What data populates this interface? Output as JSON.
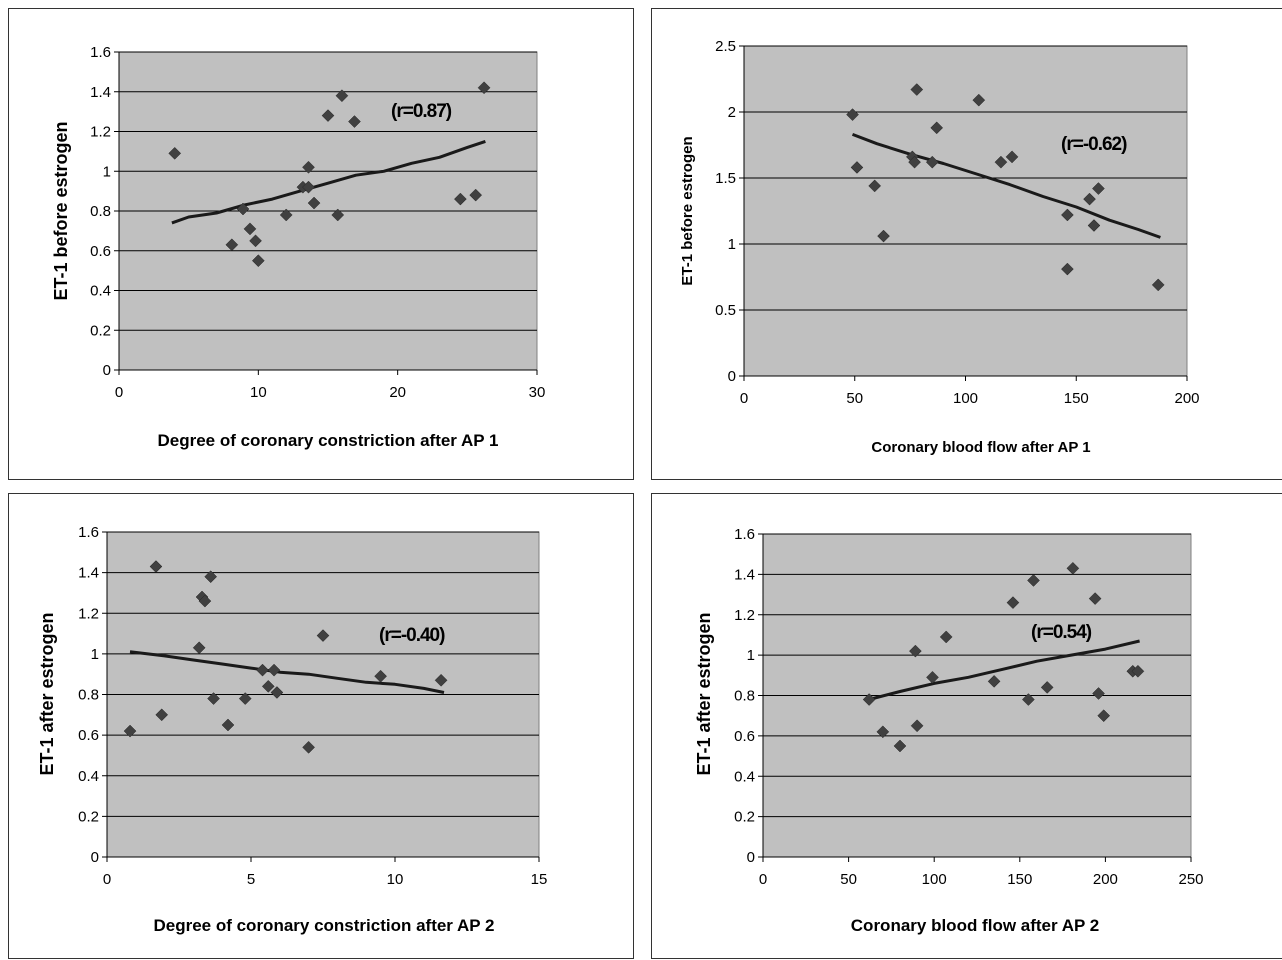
{
  "colors": {
    "plot_bg": "#c0c0c0",
    "marker": "#404040",
    "line": "#1a1a1a",
    "grid": "#000000"
  },
  "chart_data": [
    {
      "type": "scatter",
      "xlabel": "Degree of coronary constriction after AP 1",
      "ylabel": "ET-1 before estrogen",
      "annotation": "(r=0.87)",
      "xlim": [
        0,
        30
      ],
      "ylim": [
        0,
        1.6
      ],
      "xticks": [
        "0",
        "10",
        "20",
        "30"
      ],
      "yticks": [
        "0",
        "0.2",
        "0.4",
        "0.6",
        "0.8",
        "1",
        "1.2",
        "1.4",
        "1.6"
      ],
      "grid": true,
      "legend": "none",
      "points": [
        [
          4,
          1.09
        ],
        [
          8.1,
          0.63
        ],
        [
          8.9,
          0.81
        ],
        [
          9.4,
          0.71
        ],
        [
          9.8,
          0.65
        ],
        [
          10,
          0.55
        ],
        [
          12,
          0.78
        ],
        [
          13.2,
          0.92
        ],
        [
          13.6,
          0.92
        ],
        [
          13.6,
          1.02
        ],
        [
          14,
          0.84
        ],
        [
          15,
          1.28
        ],
        [
          15.7,
          0.78
        ],
        [
          16,
          1.38
        ],
        [
          16.9,
          1.25
        ],
        [
          24.5,
          0.86
        ],
        [
          25.6,
          0.88
        ],
        [
          26.2,
          1.42
        ]
      ],
      "trendline": [
        [
          3.8,
          0.74
        ],
        [
          5,
          0.77
        ],
        [
          7,
          0.79
        ],
        [
          9,
          0.83
        ],
        [
          11,
          0.86
        ],
        [
          13,
          0.9
        ],
        [
          15,
          0.94
        ],
        [
          17,
          0.98
        ],
        [
          19,
          1.0
        ],
        [
          21,
          1.04
        ],
        [
          23,
          1.07
        ],
        [
          25,
          1.12
        ],
        [
          26.3,
          1.15
        ]
      ]
    },
    {
      "type": "scatter",
      "xlabel": "Coronary blood flow after AP 1",
      "ylabel": "ET-1 before estrogen",
      "annotation": "(r=-0.62)",
      "xlim": [
        0,
        200
      ],
      "ylim": [
        0,
        2.5
      ],
      "xticks": [
        "0",
        "50",
        "100",
        "150",
        "200"
      ],
      "yticks": [
        "0",
        "0.5",
        "1",
        "1.5",
        "2",
        "2.5"
      ],
      "grid": true,
      "legend": "none",
      "points": [
        [
          49,
          1.98
        ],
        [
          51,
          1.58
        ],
        [
          59,
          1.44
        ],
        [
          63,
          1.06
        ],
        [
          76,
          1.66
        ],
        [
          77,
          1.62
        ],
        [
          78,
          2.17
        ],
        [
          85,
          1.62
        ],
        [
          87,
          1.88
        ],
        [
          106,
          2.09
        ],
        [
          116,
          1.62
        ],
        [
          121,
          1.66
        ],
        [
          146,
          1.22
        ],
        [
          146,
          0.81
        ],
        [
          156,
          1.34
        ],
        [
          158,
          1.14
        ],
        [
          160,
          1.42
        ],
        [
          187,
          0.69
        ]
      ],
      "trendline": [
        [
          49,
          1.83
        ],
        [
          60,
          1.76
        ],
        [
          75,
          1.68
        ],
        [
          90,
          1.61
        ],
        [
          105,
          1.53
        ],
        [
          120,
          1.45
        ],
        [
          135,
          1.36
        ],
        [
          150,
          1.28
        ],
        [
          165,
          1.18
        ],
        [
          178,
          1.11
        ],
        [
          188,
          1.05
        ]
      ]
    },
    {
      "type": "scatter",
      "xlabel": "Degree of coronary constriction after AP 2",
      "ylabel": "ET-1 after estrogen",
      "annotation": "(r=-0.40)",
      "xlim": [
        0,
        15
      ],
      "ylim": [
        0,
        1.6
      ],
      "xticks": [
        "0",
        "5",
        "10",
        "15"
      ],
      "yticks": [
        "0",
        "0.2",
        "0.4",
        "0.6",
        "0.8",
        "1",
        "1.2",
        "1.4",
        "1.6"
      ],
      "grid": true,
      "legend": "none",
      "points": [
        [
          0.8,
          0.62
        ],
        [
          1.7,
          1.43
        ],
        [
          1.9,
          0.7
        ],
        [
          3.2,
          1.03
        ],
        [
          3.3,
          1.28
        ],
        [
          3.4,
          1.26
        ],
        [
          3.6,
          1.38
        ],
        [
          3.7,
          0.78
        ],
        [
          4.2,
          0.65
        ],
        [
          4.8,
          0.78
        ],
        [
          5.4,
          0.92
        ],
        [
          5.6,
          0.84
        ],
        [
          5.8,
          0.92
        ],
        [
          5.9,
          0.81
        ],
        [
          7.0,
          0.54
        ],
        [
          7.5,
          1.09
        ],
        [
          9.5,
          0.89
        ],
        [
          11.6,
          0.87
        ]
      ],
      "trendline": [
        [
          0.8,
          1.01
        ],
        [
          2,
          0.99
        ],
        [
          3,
          0.97
        ],
        [
          4,
          0.95
        ],
        [
          5,
          0.93
        ],
        [
          6,
          0.91
        ],
        [
          7,
          0.9
        ],
        [
          8,
          0.88
        ],
        [
          9,
          0.86
        ],
        [
          10,
          0.85
        ],
        [
          11,
          0.83
        ],
        [
          11.7,
          0.81
        ]
      ]
    },
    {
      "type": "scatter",
      "xlabel": "Coronary blood flow after AP 2",
      "ylabel": "ET-1 after estrogen",
      "annotation": "(r=0.54)",
      "xlim": [
        0,
        250
      ],
      "ylim": [
        0,
        1.6
      ],
      "xticks": [
        "0",
        "50",
        "100",
        "150",
        "200",
        "250"
      ],
      "yticks": [
        "0",
        "0.2",
        "0.4",
        "0.6",
        "0.8",
        "1",
        "1.2",
        "1.4",
        "1.6"
      ],
      "grid": true,
      "legend": "none",
      "points": [
        [
          62,
          0.78
        ],
        [
          70,
          0.62
        ],
        [
          80,
          0.55
        ],
        [
          89,
          1.02
        ],
        [
          90,
          0.65
        ],
        [
          99,
          0.89
        ],
        [
          107,
          1.09
        ],
        [
          135,
          0.87
        ],
        [
          146,
          1.26
        ],
        [
          155,
          0.78
        ],
        [
          158,
          1.37
        ],
        [
          166,
          0.84
        ],
        [
          181,
          1.43
        ],
        [
          194,
          1.28
        ],
        [
          196,
          0.81
        ],
        [
          199,
          0.7
        ],
        [
          216,
          0.92
        ],
        [
          219,
          0.92
        ]
      ],
      "trendline": [
        [
          62,
          0.78
        ],
        [
          80,
          0.82
        ],
        [
          100,
          0.86
        ],
        [
          120,
          0.89
        ],
        [
          140,
          0.93
        ],
        [
          160,
          0.97
        ],
        [
          180,
          1.0
        ],
        [
          200,
          1.03
        ],
        [
          220,
          1.07
        ]
      ]
    }
  ]
}
